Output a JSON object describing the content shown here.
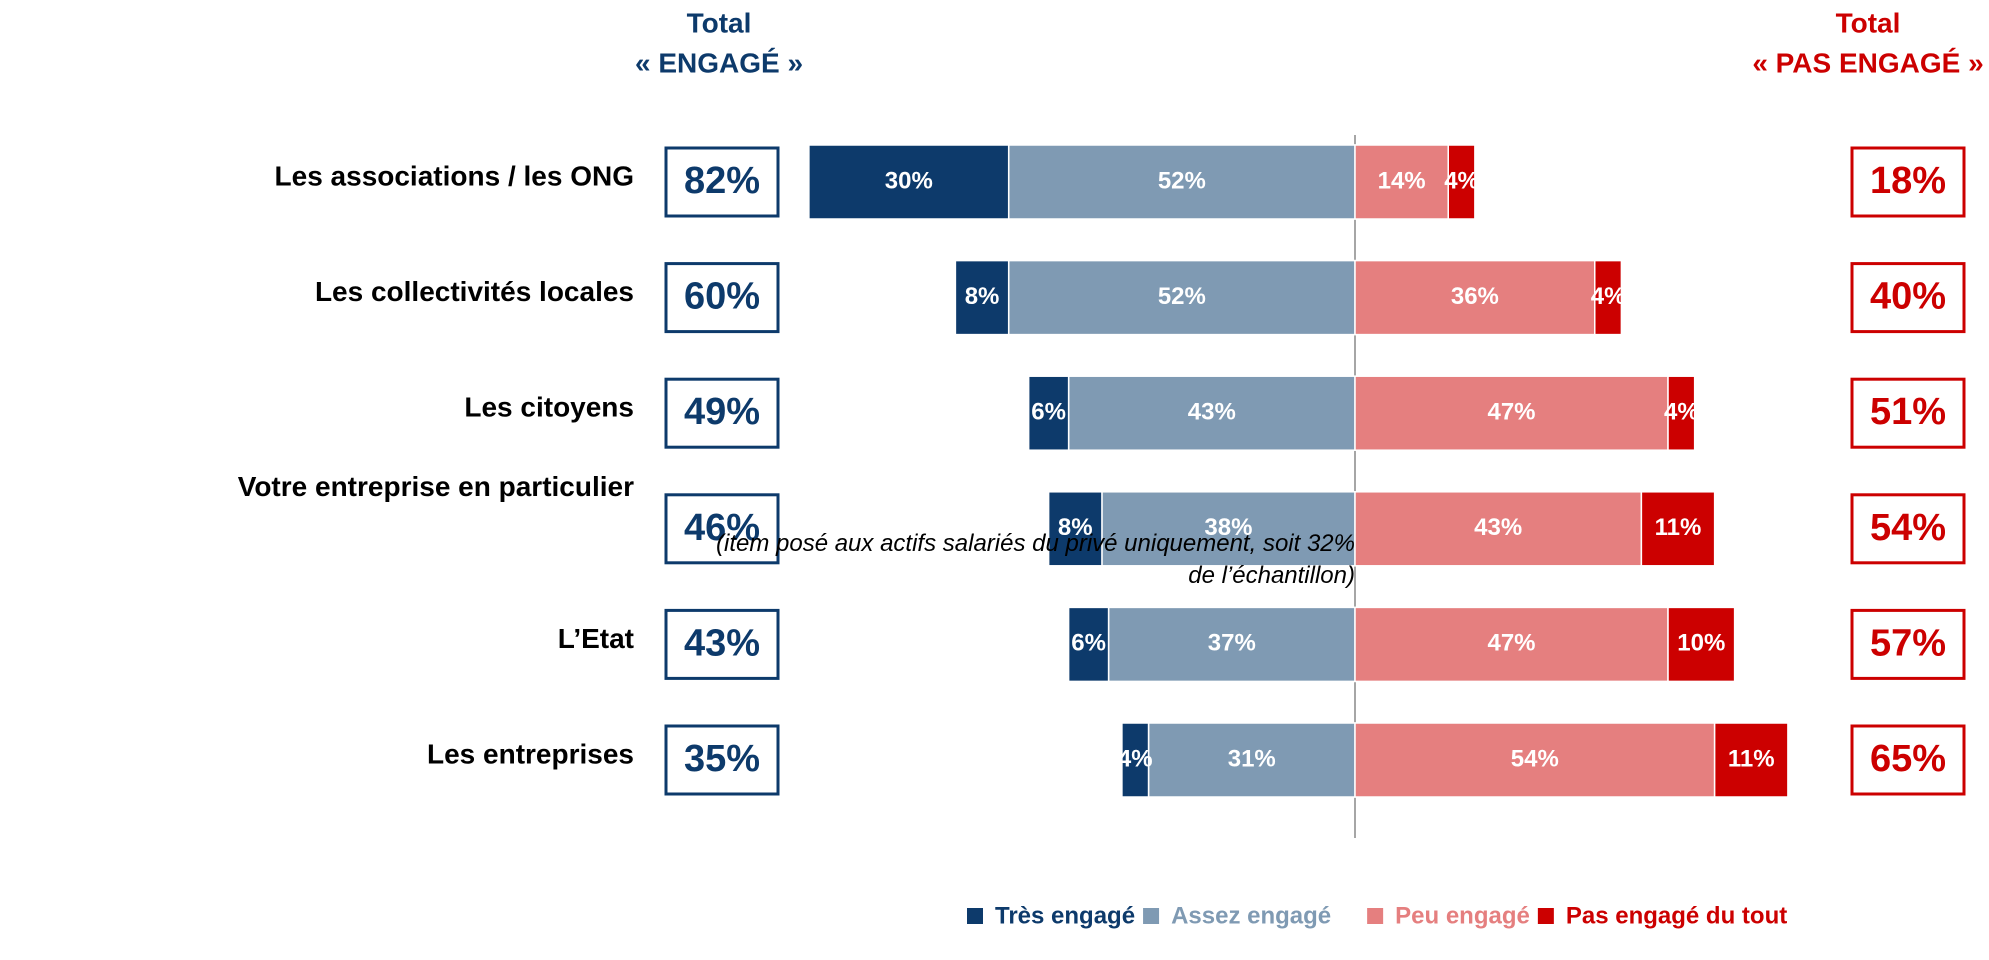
{
  "chart_data": {
    "type": "diverging_bar",
    "header_left": [
      "Total",
      "« ENGAGÉ »"
    ],
    "header_right": [
      "Total",
      "« PAS ENGAGÉ »"
    ],
    "categories": [
      "Les associations / les ONG",
      "Les collectivités locales",
      "Les citoyens",
      "Votre entreprise en particulier",
      "L’Etat",
      "Les entreprises"
    ],
    "annotation": "(item posé aux actifs salariés du privé uniquement, soit 32% de l’échantillon)",
    "series": [
      {
        "name": "Très engagé",
        "color": "#0d3a6b",
        "side": "left",
        "values": [
          30,
          8,
          6,
          8,
          6,
          4
        ],
        "value_labels": [
          "30%",
          "8%",
          "6%",
          "8%",
          "6%",
          "4%"
        ]
      },
      {
        "name": "Assez engagé",
        "color": "#7f9ab3",
        "side": "left",
        "values": [
          52,
          52,
          43,
          38,
          37,
          31
        ],
        "value_labels": [
          "52%",
          "52%",
          "43%",
          "38%",
          "37%",
          "31%"
        ]
      },
      {
        "name": "Peu engagé",
        "color": "#e57f7f",
        "side": "right",
        "values": [
          14,
          36,
          47,
          43,
          47,
          54
        ],
        "value_labels": [
          "14%",
          "36%",
          "47%",
          "43%",
          "47%",
          "54%"
        ]
      },
      {
        "name": "Pas engagé du tout",
        "color": "#cc0000",
        "side": "right",
        "values": [
          4,
          4,
          4,
          11,
          10,
          11
        ],
        "value_labels": [
          "4%",
          "4%",
          "4%",
          "11%",
          "10%",
          "11%"
        ]
      }
    ],
    "total_engaged": {
      "color": "#0d3a6b",
      "values": [
        82,
        60,
        49,
        46,
        43,
        35
      ],
      "value_labels": [
        "82%",
        "60%",
        "49%",
        "46%",
        "43%",
        "35%"
      ]
    },
    "total_not_engaged": {
      "color": "#cc0000",
      "values": [
        18,
        40,
        51,
        54,
        57,
        65
      ],
      "value_labels": [
        "18%",
        "40%",
        "51%",
        "54%",
        "57%",
        "65%"
      ]
    }
  }
}
